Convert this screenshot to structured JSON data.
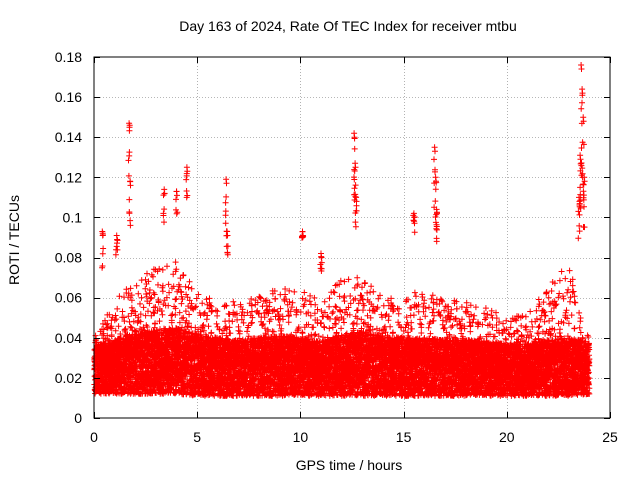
{
  "chart_data": {
    "type": "scatter",
    "title": "Day 163 of 2024, Rate Of TEC Index for receiver mtbu",
    "xlabel": "GPS time / hours",
    "ylabel": "ROTI / TECUs",
    "xlim": [
      0,
      25
    ],
    "ylim": [
      0,
      0.18
    ],
    "xticks": [
      0,
      5,
      10,
      15,
      20,
      25
    ],
    "xtick_labels": [
      "0",
      "5",
      "10",
      "15",
      "20",
      "25"
    ],
    "yticks": [
      0,
      0.02,
      0.04,
      0.06,
      0.08,
      0.1,
      0.12,
      0.14,
      0.16,
      0.18
    ],
    "ytick_labels": [
      "0",
      "0.02",
      "0.04",
      "0.06",
      "0.08",
      "0.1",
      "0.12",
      "0.14",
      "0.16",
      "0.18"
    ],
    "grid": true,
    "marker": "+",
    "color": "#ff0000",
    "sample_rate_hours": 0.0083,
    "series": [
      {
        "name": "ROTI",
        "baseline": {
          "x": [
            0,
            1,
            2,
            3,
            4,
            5,
            6,
            7,
            8,
            9,
            10,
            11,
            12,
            13,
            14,
            15,
            16,
            17,
            18,
            19,
            20,
            21,
            22,
            23,
            24
          ],
          "low": [
            0.012,
            0.012,
            0.012,
            0.012,
            0.012,
            0.011,
            0.011,
            0.011,
            0.011,
            0.011,
            0.011,
            0.011,
            0.011,
            0.011,
            0.011,
            0.011,
            0.011,
            0.011,
            0.011,
            0.011,
            0.011,
            0.011,
            0.011,
            0.011,
            0.012
          ],
          "typical": [
            0.024,
            0.027,
            0.03,
            0.032,
            0.033,
            0.03,
            0.028,
            0.027,
            0.028,
            0.029,
            0.028,
            0.026,
            0.03,
            0.031,
            0.029,
            0.028,
            0.028,
            0.027,
            0.027,
            0.026,
            0.025,
            0.025,
            0.027,
            0.028,
            0.026
          ],
          "upper": [
            0.04,
            0.058,
            0.07,
            0.075,
            0.078,
            0.062,
            0.06,
            0.058,
            0.062,
            0.065,
            0.064,
            0.058,
            0.07,
            0.07,
            0.06,
            0.062,
            0.064,
            0.06,
            0.058,
            0.055,
            0.05,
            0.052,
            0.065,
            0.078,
            0.04
          ]
        },
        "peaks": [
          {
            "x": 0.4,
            "y": 0.093
          },
          {
            "x": 1.1,
            "y": 0.091
          },
          {
            "x": 1.7,
            "y": 0.147
          },
          {
            "x": 1.75,
            "y": 0.118
          },
          {
            "x": 3.4,
            "y": 0.114
          },
          {
            "x": 4.0,
            "y": 0.113
          },
          {
            "x": 4.5,
            "y": 0.125
          },
          {
            "x": 6.4,
            "y": 0.119
          },
          {
            "x": 6.45,
            "y": 0.093
          },
          {
            "x": 10.1,
            "y": 0.093
          },
          {
            "x": 11.0,
            "y": 0.082
          },
          {
            "x": 12.6,
            "y": 0.142
          },
          {
            "x": 12.65,
            "y": 0.127
          },
          {
            "x": 12.7,
            "y": 0.11
          },
          {
            "x": 15.5,
            "y": 0.102
          },
          {
            "x": 16.5,
            "y": 0.135
          },
          {
            "x": 16.55,
            "y": 0.12
          },
          {
            "x": 16.6,
            "y": 0.104
          },
          {
            "x": 23.6,
            "y": 0.176
          },
          {
            "x": 23.65,
            "y": 0.164
          },
          {
            "x": 23.7,
            "y": 0.15
          },
          {
            "x": 23.55,
            "y": 0.131
          },
          {
            "x": 23.75,
            "y": 0.12
          },
          {
            "x": 23.5,
            "y": 0.11
          }
        ]
      }
    ]
  }
}
